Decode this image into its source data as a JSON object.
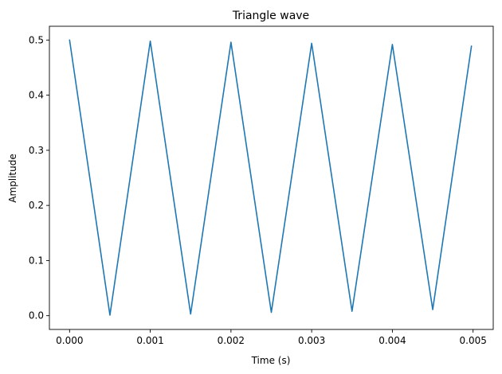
{
  "chart_data": {
    "type": "line",
    "title": "Triangle wave",
    "xlabel": "Time (s)",
    "ylabel": "Amplitude",
    "xlim": [
      -0.00025,
      0.00525
    ],
    "ylim": [
      -0.025,
      0.525
    ],
    "xticks": [
      0.0,
      0.001,
      0.002,
      0.003,
      0.004,
      0.005
    ],
    "xtick_labels": [
      "0.000",
      "0.001",
      "0.002",
      "0.003",
      "0.004",
      "0.005"
    ],
    "yticks": [
      0.0,
      0.1,
      0.2,
      0.3,
      0.4,
      0.5
    ],
    "ytick_labels": [
      "0.0",
      "0.1",
      "0.2",
      "0.3",
      "0.4",
      "0.5"
    ],
    "grid": false,
    "series": [
      {
        "color": "#1f77b4",
        "x": [
          0.0,
          0.0005,
          0.001,
          0.0015,
          0.002,
          0.0025,
          0.003,
          0.0035,
          0.004,
          0.0045,
          0.00498
        ],
        "y": [
          0.5,
          0.001,
          0.498,
          0.003,
          0.496,
          0.006,
          0.494,
          0.008,
          0.492,
          0.011,
          0.489
        ]
      }
    ]
  }
}
